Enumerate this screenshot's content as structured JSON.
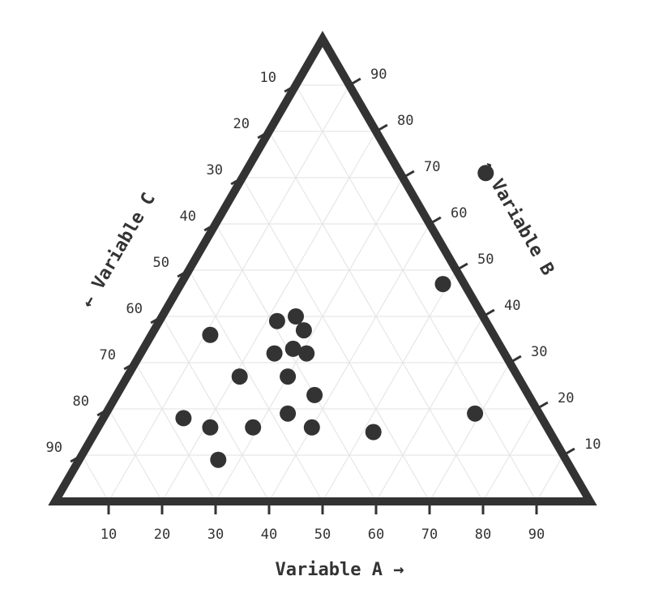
{
  "chart_data": {
    "type": "scatter",
    "subtype": "ternary",
    "axes": {
      "a": {
        "label": "Variable A →",
        "ticks": [
          10,
          20,
          30,
          40,
          50,
          60,
          70,
          80,
          90
        ]
      },
      "b": {
        "label": "↑ Variable B",
        "ticks": [
          10,
          20,
          30,
          40,
          50,
          60,
          70,
          80,
          90
        ]
      },
      "c": {
        "label": "← Variable C",
        "ticks": [
          10,
          20,
          30,
          40,
          50,
          60,
          70,
          80,
          90
        ]
      }
    },
    "grid": true,
    "gridlines_per_axis": 10,
    "points": [
      {
        "a": 45,
        "b": 71,
        "c": -16
      },
      {
        "a": 49,
        "b": 47,
        "c": 4
      },
      {
        "a": 11,
        "b": 36,
        "c": 53
      },
      {
        "a": 22,
        "b": 39,
        "c": 39
      },
      {
        "a": 25,
        "b": 40,
        "c": 35
      },
      {
        "a": 28,
        "b": 37,
        "c": 35
      },
      {
        "a": 25,
        "b": 32,
        "c": 43
      },
      {
        "a": 28,
        "b": 33,
        "c": 39
      },
      {
        "a": 31,
        "b": 32,
        "c": 37
      },
      {
        "a": 30,
        "b": 27,
        "c": 43
      },
      {
        "a": 21,
        "b": 27,
        "c": 52
      },
      {
        "a": 37,
        "b": 23,
        "c": 40
      },
      {
        "a": 34,
        "b": 19,
        "c": 47
      },
      {
        "a": 40,
        "b": 16,
        "c": 44
      },
      {
        "a": 29,
        "b": 16,
        "c": 55
      },
      {
        "a": 26,
        "b": 9,
        "c": 65
      },
      {
        "a": 21,
        "b": 16,
        "c": 63
      },
      {
        "a": 15,
        "b": 18,
        "c": 67
      },
      {
        "a": 52,
        "b": 15,
        "c": 33
      },
      {
        "a": 69,
        "b": 19,
        "c": 12
      }
    ],
    "colors": {
      "frame": "#333333",
      "grid": "#e6e6e6",
      "point": "#333333",
      "text": "#333333"
    }
  }
}
